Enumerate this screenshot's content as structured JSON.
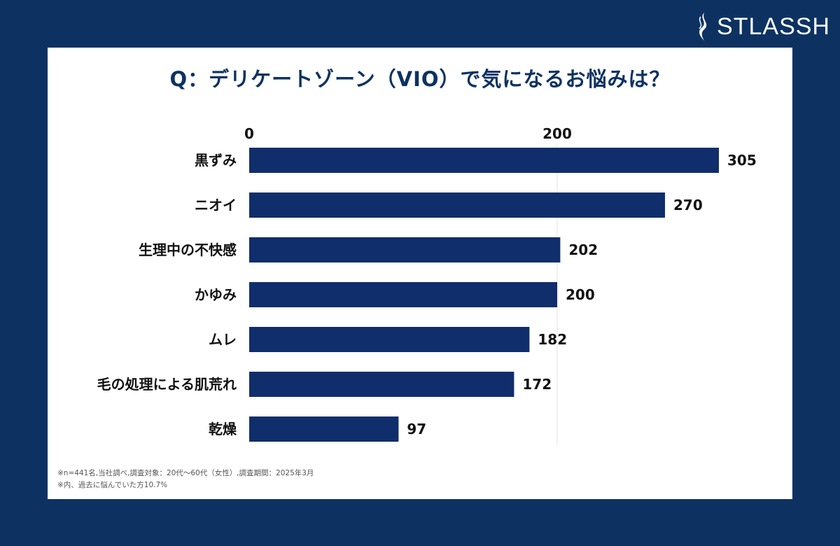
{
  "brand": {
    "name": "STLASSH",
    "logo_icon": "flame-s-icon"
  },
  "colors": {
    "background": "#0d3262",
    "bar": "#0f2e6b",
    "title": "#0d3262",
    "text": "#111111",
    "grid": "#e6e6e6"
  },
  "chart_data": {
    "type": "bar",
    "orientation": "horizontal",
    "title": "Q：デリケートゾーン（VIO）で気になるお悩みは？",
    "categories": [
      "黒ずみ",
      "ニオイ",
      "生理中の不快感",
      "かゆみ",
      "ムレ",
      "毛の処理による肌荒れ",
      "乾燥"
    ],
    "values": [
      305,
      270,
      202,
      200,
      182,
      172,
      97
    ],
    "x_ticks": [
      0,
      200
    ],
    "xlim": [
      0,
      310
    ],
    "grid": true,
    "xlabel": "",
    "ylabel": ""
  },
  "notes": [
    "※n=441名,当社調べ,調査対象：20代〜60代（女性）,調査期間：2025年3月",
    "※内、過去に悩んでいた方10.7%"
  ]
}
